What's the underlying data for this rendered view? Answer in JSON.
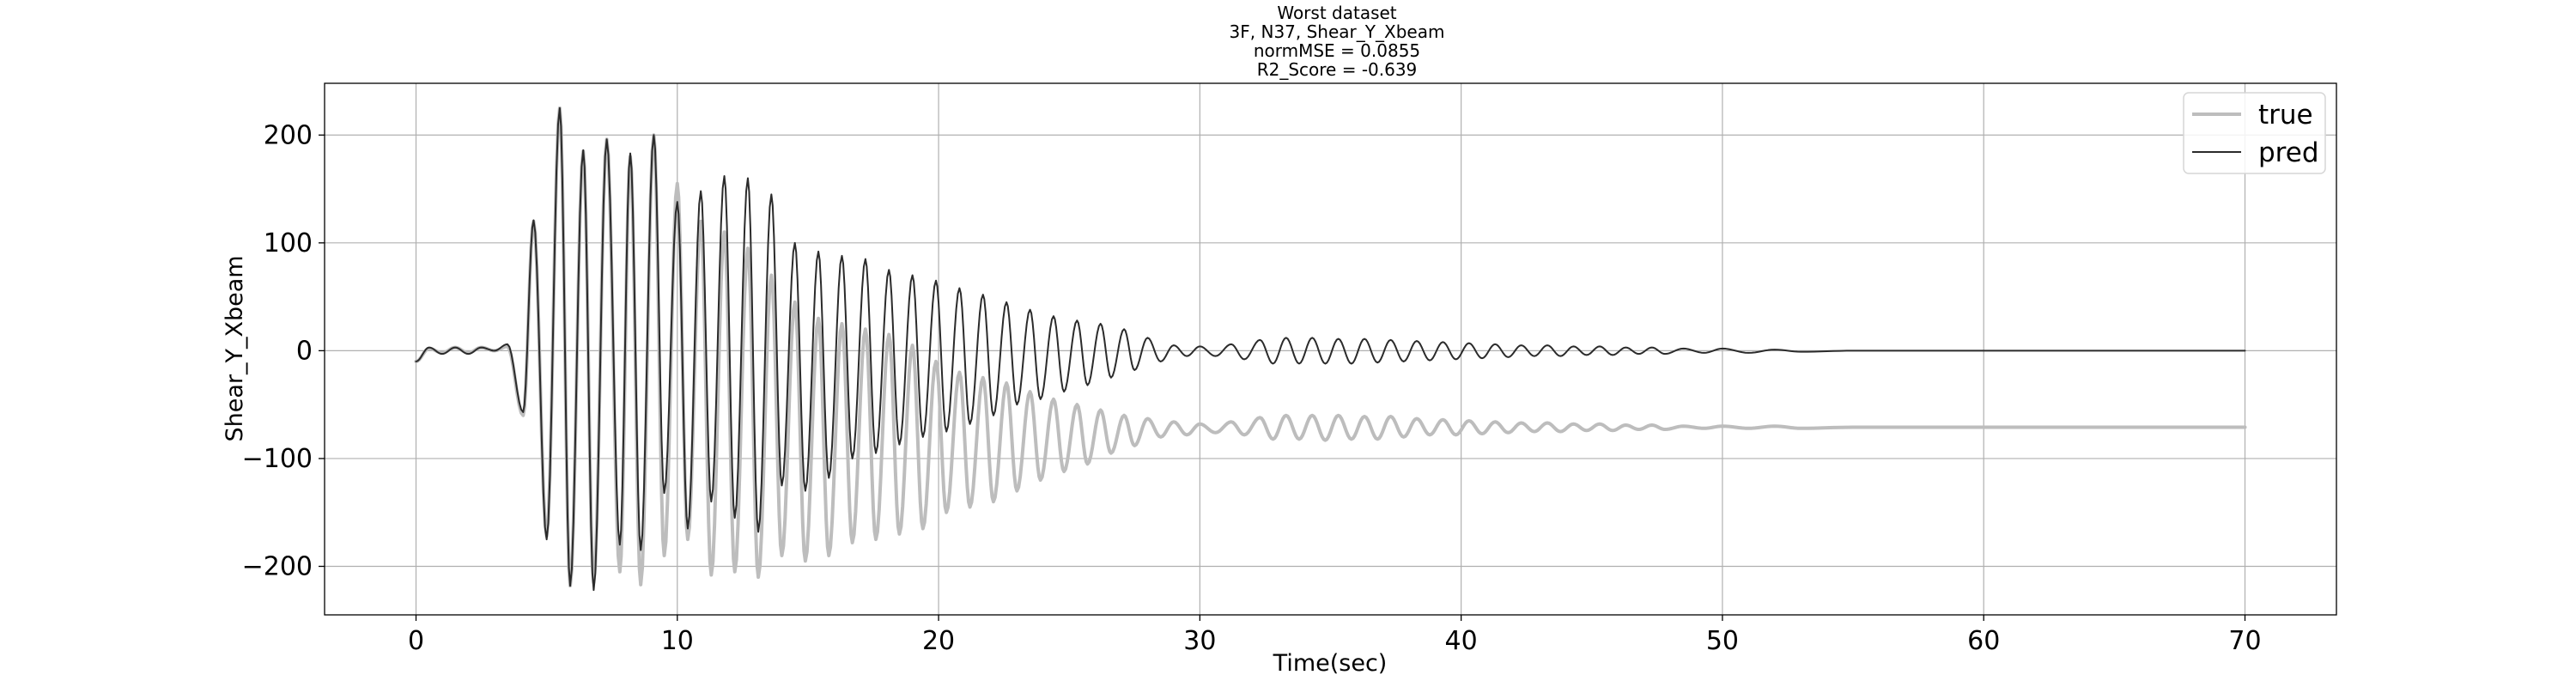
{
  "chart_data": {
    "type": "line",
    "title_lines": [
      "Worst dataset",
      "3F, N37, Shear_Y_Xbeam",
      "normMSE = 0.0855",
      "R2_Score = -0.639"
    ],
    "xlabel": "Time(sec)",
    "ylabel": "Shear_Y_Xbeam",
    "xlim": [
      -3.5,
      73.5
    ],
    "ylim": [
      -245,
      248
    ],
    "x_ticks": [
      0,
      10,
      20,
      30,
      40,
      50,
      60,
      70
    ],
    "y_ticks": [
      -200,
      -100,
      0,
      100,
      200
    ],
    "x_tick_labels": [
      "0",
      "10",
      "20",
      "30",
      "40",
      "50",
      "60",
      "70"
    ],
    "y_tick_labels": [
      "−200",
      "−100",
      "0",
      "100",
      "200"
    ],
    "grid": true,
    "legend": {
      "placement": "top-right",
      "entries": [
        "true",
        "pred"
      ]
    },
    "x_range": [
      0,
      70
    ],
    "series": [
      {
        "name": "true",
        "color": "#bdbdbd",
        "peaks": [
          {
            "x": 0.0,
            "y": -10
          },
          {
            "x": 0.5,
            "y": 2
          },
          {
            "x": 1.0,
            "y": -2
          },
          {
            "x": 1.5,
            "y": 3
          },
          {
            "x": 2.0,
            "y": -2
          },
          {
            "x": 2.5,
            "y": 3
          },
          {
            "x": 3.0,
            "y": 0
          },
          {
            "x": 3.5,
            "y": 4
          },
          {
            "x": 4.1,
            "y": -60
          },
          {
            "x": 4.5,
            "y": 120
          },
          {
            "x": 5.0,
            "y": -172
          },
          {
            "x": 5.5,
            "y": 225
          },
          {
            "x": 5.9,
            "y": -218
          },
          {
            "x": 6.4,
            "y": 185
          },
          {
            "x": 6.8,
            "y": -215
          },
          {
            "x": 7.3,
            "y": 196
          },
          {
            "x": 7.8,
            "y": -205
          },
          {
            "x": 8.2,
            "y": 180
          },
          {
            "x": 8.6,
            "y": -217
          },
          {
            "x": 9.1,
            "y": 200
          },
          {
            "x": 9.5,
            "y": -190
          },
          {
            "x": 10.0,
            "y": 155
          },
          {
            "x": 10.4,
            "y": -175
          },
          {
            "x": 10.9,
            "y": 120
          },
          {
            "x": 11.3,
            "y": -208
          },
          {
            "x": 11.8,
            "y": 110
          },
          {
            "x": 12.2,
            "y": -205
          },
          {
            "x": 12.7,
            "y": 95
          },
          {
            "x": 13.1,
            "y": -210
          },
          {
            "x": 13.6,
            "y": 70
          },
          {
            "x": 14.0,
            "y": -190
          },
          {
            "x": 14.5,
            "y": 45
          },
          {
            "x": 14.9,
            "y": -195
          },
          {
            "x": 15.4,
            "y": 30
          },
          {
            "x": 15.8,
            "y": -190
          },
          {
            "x": 16.3,
            "y": 25
          },
          {
            "x": 16.7,
            "y": -178
          },
          {
            "x": 17.2,
            "y": 20
          },
          {
            "x": 17.6,
            "y": -175
          },
          {
            "x": 18.1,
            "y": 15
          },
          {
            "x": 18.5,
            "y": -170
          },
          {
            "x": 19.0,
            "y": 5
          },
          {
            "x": 19.4,
            "y": -165
          },
          {
            "x": 19.9,
            "y": -10
          },
          {
            "x": 20.3,
            "y": -150
          },
          {
            "x": 20.8,
            "y": -20
          },
          {
            "x": 21.2,
            "y": -145
          },
          {
            "x": 21.7,
            "y": -25
          },
          {
            "x": 22.1,
            "y": -140
          },
          {
            "x": 22.6,
            "y": -30
          },
          {
            "x": 23.0,
            "y": -130
          },
          {
            "x": 23.5,
            "y": -38
          },
          {
            "x": 23.9,
            "y": -120
          },
          {
            "x": 24.4,
            "y": -45
          },
          {
            "x": 24.8,
            "y": -112
          },
          {
            "x": 25.3,
            "y": -50
          },
          {
            "x": 25.7,
            "y": -105
          },
          {
            "x": 26.2,
            "y": -55
          },
          {
            "x": 26.6,
            "y": -95
          },
          {
            "x": 27.1,
            "y": -60
          },
          {
            "x": 27.5,
            "y": -88
          },
          {
            "x": 28.0,
            "y": -63
          },
          {
            "x": 28.5,
            "y": -80
          },
          {
            "x": 29.0,
            "y": -66
          },
          {
            "x": 29.5,
            "y": -78
          },
          {
            "x": 30.0,
            "y": -68
          },
          {
            "x": 30.6,
            "y": -76
          },
          {
            "x": 31.2,
            "y": -66
          },
          {
            "x": 31.7,
            "y": -78
          },
          {
            "x": 32.3,
            "y": -62
          },
          {
            "x": 32.8,
            "y": -82
          },
          {
            "x": 33.3,
            "y": -60
          },
          {
            "x": 33.8,
            "y": -82
          },
          {
            "x": 34.3,
            "y": -60
          },
          {
            "x": 34.8,
            "y": -83
          },
          {
            "x": 35.3,
            "y": -60
          },
          {
            "x": 35.8,
            "y": -82
          },
          {
            "x": 36.3,
            "y": -61
          },
          {
            "x": 36.8,
            "y": -82
          },
          {
            "x": 37.3,
            "y": -61
          },
          {
            "x": 37.8,
            "y": -80
          },
          {
            "x": 38.3,
            "y": -63
          },
          {
            "x": 38.8,
            "y": -78
          },
          {
            "x": 39.3,
            "y": -64
          },
          {
            "x": 39.8,
            "y": -78
          },
          {
            "x": 40.3,
            "y": -65
          },
          {
            "x": 40.8,
            "y": -77
          },
          {
            "x": 41.3,
            "y": -66
          },
          {
            "x": 41.8,
            "y": -76
          },
          {
            "x": 42.3,
            "y": -67
          },
          {
            "x": 42.8,
            "y": -75
          },
          {
            "x": 43.3,
            "y": -67
          },
          {
            "x": 43.8,
            "y": -75
          },
          {
            "x": 44.3,
            "y": -68
          },
          {
            "x": 44.8,
            "y": -74
          },
          {
            "x": 45.3,
            "y": -68
          },
          {
            "x": 45.8,
            "y": -74
          },
          {
            "x": 46.3,
            "y": -69
          },
          {
            "x": 46.8,
            "y": -73
          },
          {
            "x": 47.3,
            "y": -69
          },
          {
            "x": 47.8,
            "y": -73
          },
          {
            "x": 48.5,
            "y": -70
          },
          {
            "x": 49.3,
            "y": -72
          },
          {
            "x": 50.0,
            "y": -70
          },
          {
            "x": 51.0,
            "y": -72
          },
          {
            "x": 52.0,
            "y": -70
          },
          {
            "x": 53.0,
            "y": -72
          },
          {
            "x": 55.0,
            "y": -71
          },
          {
            "x": 60.0,
            "y": -71
          },
          {
            "x": 65.0,
            "y": -71
          },
          {
            "x": 70.0,
            "y": -71
          }
        ]
      },
      {
        "name": "pred",
        "color": "#2b2b2b",
        "peaks": [
          {
            "x": 0.0,
            "y": -10
          },
          {
            "x": 0.5,
            "y": 3
          },
          {
            "x": 1.0,
            "y": -3
          },
          {
            "x": 1.5,
            "y": 3
          },
          {
            "x": 2.0,
            "y": -3
          },
          {
            "x": 2.5,
            "y": 3
          },
          {
            "x": 3.0,
            "y": 0
          },
          {
            "x": 3.5,
            "y": 6
          },
          {
            "x": 4.1,
            "y": -57
          },
          {
            "x": 4.5,
            "y": 121
          },
          {
            "x": 5.0,
            "y": -175
          },
          {
            "x": 5.5,
            "y": 225
          },
          {
            "x": 5.9,
            "y": -218
          },
          {
            "x": 6.4,
            "y": 186
          },
          {
            "x": 6.8,
            "y": -222
          },
          {
            "x": 7.3,
            "y": 196
          },
          {
            "x": 7.8,
            "y": -180
          },
          {
            "x": 8.2,
            "y": 183
          },
          {
            "x": 8.6,
            "y": -185
          },
          {
            "x": 9.1,
            "y": 200
          },
          {
            "x": 9.5,
            "y": -132
          },
          {
            "x": 10.0,
            "y": 138
          },
          {
            "x": 10.4,
            "y": -165
          },
          {
            "x": 10.9,
            "y": 148
          },
          {
            "x": 11.3,
            "y": -140
          },
          {
            "x": 11.8,
            "y": 162
          },
          {
            "x": 12.2,
            "y": -155
          },
          {
            "x": 12.7,
            "y": 160
          },
          {
            "x": 13.1,
            "y": -168
          },
          {
            "x": 13.6,
            "y": 145
          },
          {
            "x": 14.0,
            "y": -125
          },
          {
            "x": 14.5,
            "y": 100
          },
          {
            "x": 14.9,
            "y": -130
          },
          {
            "x": 15.4,
            "y": 92
          },
          {
            "x": 15.8,
            "y": -118
          },
          {
            "x": 16.3,
            "y": 88
          },
          {
            "x": 16.7,
            "y": -100
          },
          {
            "x": 17.2,
            "y": 85
          },
          {
            "x": 17.6,
            "y": -95
          },
          {
            "x": 18.1,
            "y": 75
          },
          {
            "x": 18.5,
            "y": -87
          },
          {
            "x": 19.0,
            "y": 70
          },
          {
            "x": 19.4,
            "y": -80
          },
          {
            "x": 19.9,
            "y": 65
          },
          {
            "x": 20.3,
            "y": -75
          },
          {
            "x": 20.8,
            "y": 58
          },
          {
            "x": 21.2,
            "y": -68
          },
          {
            "x": 21.7,
            "y": 52
          },
          {
            "x": 22.1,
            "y": -60
          },
          {
            "x": 22.6,
            "y": 45
          },
          {
            "x": 23.0,
            "y": -50
          },
          {
            "x": 23.5,
            "y": 38
          },
          {
            "x": 23.9,
            "y": -45
          },
          {
            "x": 24.4,
            "y": 32
          },
          {
            "x": 24.8,
            "y": -38
          },
          {
            "x": 25.3,
            "y": 28
          },
          {
            "x": 25.7,
            "y": -32
          },
          {
            "x": 26.2,
            "y": 25
          },
          {
            "x": 26.6,
            "y": -25
          },
          {
            "x": 27.1,
            "y": 20
          },
          {
            "x": 27.5,
            "y": -18
          },
          {
            "x": 28.0,
            "y": 12
          },
          {
            "x": 28.5,
            "y": -10
          },
          {
            "x": 29.0,
            "y": 5
          },
          {
            "x": 29.5,
            "y": -5
          },
          {
            "x": 30.0,
            "y": 4
          },
          {
            "x": 30.6,
            "y": -5
          },
          {
            "x": 31.2,
            "y": 6
          },
          {
            "x": 31.7,
            "y": -8
          },
          {
            "x": 32.3,
            "y": 10
          },
          {
            "x": 32.8,
            "y": -12
          },
          {
            "x": 33.3,
            "y": 12
          },
          {
            "x": 33.8,
            "y": -12
          },
          {
            "x": 34.3,
            "y": 12
          },
          {
            "x": 34.8,
            "y": -12
          },
          {
            "x": 35.3,
            "y": 11
          },
          {
            "x": 35.8,
            "y": -12
          },
          {
            "x": 36.3,
            "y": 11
          },
          {
            "x": 36.8,
            "y": -11
          },
          {
            "x": 37.3,
            "y": 10
          },
          {
            "x": 37.8,
            "y": -10
          },
          {
            "x": 38.3,
            "y": 9
          },
          {
            "x": 38.8,
            "y": -9
          },
          {
            "x": 39.3,
            "y": 8
          },
          {
            "x": 39.8,
            "y": -8
          },
          {
            "x": 40.3,
            "y": 7
          },
          {
            "x": 40.8,
            "y": -7
          },
          {
            "x": 41.3,
            "y": 6
          },
          {
            "x": 41.8,
            "y": -6
          },
          {
            "x": 42.3,
            "y": 5
          },
          {
            "x": 42.8,
            "y": -5
          },
          {
            "x": 43.3,
            "y": 5
          },
          {
            "x": 43.8,
            "y": -5
          },
          {
            "x": 44.3,
            "y": 4
          },
          {
            "x": 44.8,
            "y": -4
          },
          {
            "x": 45.3,
            "y": 4
          },
          {
            "x": 45.8,
            "y": -4
          },
          {
            "x": 46.3,
            "y": 3
          },
          {
            "x": 46.8,
            "y": -3
          },
          {
            "x": 47.3,
            "y": 3
          },
          {
            "x": 47.8,
            "y": -3
          },
          {
            "x": 48.5,
            "y": 2
          },
          {
            "x": 49.3,
            "y": -2
          },
          {
            "x": 50.0,
            "y": 2
          },
          {
            "x": 51.0,
            "y": -2
          },
          {
            "x": 52.0,
            "y": 1
          },
          {
            "x": 53.0,
            "y": -1
          },
          {
            "x": 55.0,
            "y": 0
          },
          {
            "x": 60.0,
            "y": 0
          },
          {
            "x": 65.0,
            "y": 0
          },
          {
            "x": 70.0,
            "y": 0
          }
        ]
      }
    ]
  }
}
